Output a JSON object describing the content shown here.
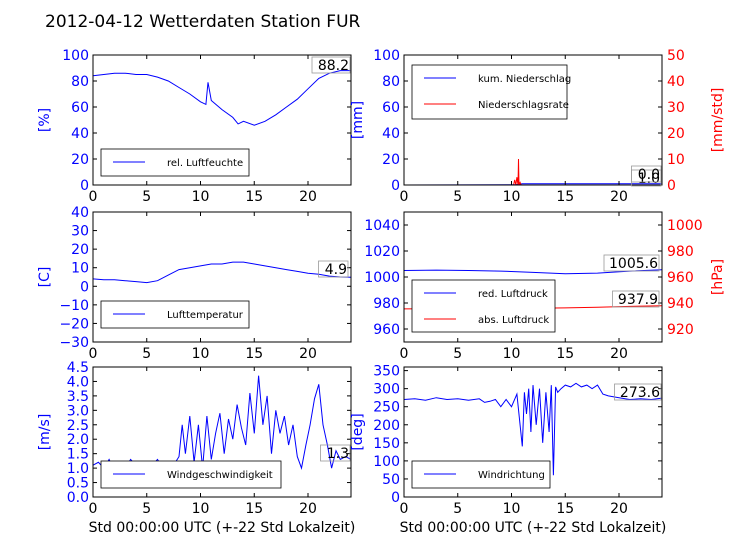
{
  "title": "2012-04-12 Wetterdaten Station FUR",
  "colors": {
    "left_axis": "#0000ff",
    "right_axis": "#ff0000",
    "line_primary": "#0000ff",
    "line_secondary": "#ff0000"
  },
  "chart_data": [
    {
      "id": "humidity",
      "type": "line",
      "ylabel": "[%]",
      "ylim": [
        0,
        100
      ],
      "yticks": [
        "0",
        "20",
        "40",
        "60",
        "80",
        "100"
      ],
      "xlim": [
        0,
        24
      ],
      "xticks": [
        "0",
        "5",
        "10",
        "15",
        "20"
      ],
      "xlabel": "",
      "annotation": "88.2",
      "legend_position": "lower-left",
      "series": [
        {
          "name": "rel. Luftfeuchte",
          "x": [
            0,
            1,
            2,
            3,
            4,
            5,
            6,
            7,
            8,
            9,
            10,
            10.5,
            10.7,
            11,
            12,
            13,
            13.5,
            14,
            15,
            16,
            17,
            18,
            19,
            20,
            21,
            22,
            23,
            24
          ],
          "values": [
            84,
            85,
            86,
            86,
            85,
            85,
            83,
            80,
            75,
            70,
            64,
            62,
            79,
            65,
            58,
            52,
            47,
            49,
            46,
            49,
            54,
            60,
            66,
            74,
            82,
            86,
            88,
            88
          ]
        }
      ]
    },
    {
      "id": "precipitation",
      "type": "line",
      "ylabel": "[mm]",
      "ylim": [
        0,
        100
      ],
      "yticks": [
        "0",
        "20",
        "40",
        "60",
        "80",
        "100"
      ],
      "y2label": "[mm/std]",
      "y2lim": [
        0,
        50
      ],
      "y2ticks": [
        "0",
        "10",
        "20",
        "30",
        "40",
        "50"
      ],
      "xlim": [
        0,
        24
      ],
      "xticks": [
        "0",
        "5",
        "10",
        "15",
        "20"
      ],
      "xlabel": "",
      "annotation": "1.0",
      "annotation2": "0.0",
      "legend_position": "upper-left",
      "series": [
        {
          "name": "kum. Niederschlag",
          "axis": "left",
          "x": [
            0,
            10.4,
            10.8,
            11,
            24
          ],
          "values": [
            0,
            0.2,
            0.8,
            1.0,
            1.0
          ]
        },
        {
          "name": "Niederschlagsrate",
          "axis": "right",
          "x": [
            0,
            10.2,
            10.3,
            10.4,
            10.5,
            10.6,
            10.65,
            10.7,
            10.8,
            10.9,
            11,
            24
          ],
          "values": [
            0,
            0,
            2,
            0,
            3,
            0,
            10,
            0,
            1,
            0,
            0,
            0
          ]
        }
      ]
    },
    {
      "id": "temperature",
      "type": "line",
      "ylabel": "[C]",
      "ylim": [
        -30,
        40
      ],
      "yticks": [
        "−30",
        "−20",
        "−10",
        "0",
        "10",
        "20",
        "30",
        "40"
      ],
      "xlim": [
        0,
        24
      ],
      "xticks": [
        "0",
        "5",
        "10",
        "15",
        "20"
      ],
      "xlabel": "",
      "annotation": "4.9",
      "legend_position": "lower-left",
      "series": [
        {
          "name": "Lufttemperatur",
          "x": [
            0,
            1,
            2,
            3,
            4,
            5,
            6,
            7,
            8,
            9,
            10,
            11,
            12,
            13,
            14,
            15,
            16,
            17,
            18,
            19,
            20,
            21,
            22,
            23,
            24
          ],
          "values": [
            4,
            3.5,
            3.5,
            3,
            2.5,
            2,
            3,
            6,
            9,
            10,
            11,
            12,
            12,
            13,
            13,
            12,
            11,
            10,
            9,
            8,
            7,
            6.5,
            5.5,
            5,
            4.9
          ]
        }
      ]
    },
    {
      "id": "pressure",
      "type": "line",
      "ylabel": "",
      "ylim": [
        950,
        1050
      ],
      "yticks": [
        "960",
        "980",
        "1000",
        "1020",
        "1040"
      ],
      "y2label": "[hPa]",
      "y2lim": [
        910,
        1010
      ],
      "y2ticks": [
        "920",
        "940",
        "960",
        "980",
        "1000"
      ],
      "xlim": [
        0,
        24
      ],
      "xticks": [
        "0",
        "5",
        "10",
        "15",
        "20"
      ],
      "xlabel": "",
      "annotation": "1005.6",
      "annotation2": "937.9",
      "legend_position": "lower-left",
      "series": [
        {
          "name": "red. Luftdruck",
          "axis": "left",
          "x": [
            0,
            3,
            6,
            9,
            12,
            15,
            18,
            21,
            24
          ],
          "values": [
            1005,
            1005.3,
            1005,
            1004.5,
            1003.5,
            1002.5,
            1003,
            1004.5,
            1005.6
          ]
        },
        {
          "name": "abs. Luftdruck",
          "axis": "right",
          "x": [
            0,
            3,
            6,
            9,
            12,
            15,
            18,
            21,
            24
          ],
          "values": [
            935.5,
            935.6,
            935.7,
            935.8,
            936,
            936.2,
            936.8,
            937.4,
            937.9
          ]
        }
      ]
    },
    {
      "id": "wind_speed",
      "type": "line",
      "ylabel": "[m/s]",
      "ylim": [
        0,
        4.5
      ],
      "yticks": [
        "0.0",
        "0.5",
        "1.0",
        "1.5",
        "2.0",
        "2.5",
        "3.0",
        "3.5",
        "4.0",
        "4.5"
      ],
      "xlim": [
        0,
        24
      ],
      "xticks": [
        "0",
        "5",
        "10",
        "15",
        "20"
      ],
      "xlabel": "Std 00:00:00 UTC (+-22 Std Lokalzeit)",
      "annotation": "1.3",
      "legend_position": "lower-left",
      "series": [
        {
          "name": "Windgeschwindigkeit",
          "x": [
            0,
            0.5,
            1,
            1.5,
            2,
            2.5,
            3,
            3.5,
            4,
            4.5,
            5,
            5.5,
            6,
            6.5,
            7,
            7.5,
            8,
            8.3,
            8.6,
            9,
            9.4,
            9.8,
            10.2,
            10.6,
            11,
            11.4,
            11.8,
            12.2,
            12.6,
            13,
            13.4,
            13.8,
            14.2,
            14.6,
            15,
            15.4,
            15.8,
            16.2,
            16.6,
            17,
            17.4,
            17.8,
            18.2,
            18.6,
            19,
            19.4,
            19.8,
            20.2,
            20.6,
            21,
            21.4,
            21.8,
            22.2,
            22.6,
            23,
            23.5,
            24
          ],
          "values": [
            1.1,
            1.2,
            1.0,
            1.3,
            0.9,
            1.2,
            1.0,
            1.3,
            1.1,
            1.2,
            0.9,
            1.1,
            1.3,
            1.0,
            1.2,
            1.1,
            1.4,
            2.5,
            1.5,
            2.8,
            1.2,
            2.5,
            1.0,
            2.8,
            1.3,
            2.2,
            2.9,
            1.5,
            2.7,
            2.0,
            3.2,
            2.4,
            1.8,
            3.6,
            2.2,
            4.2,
            2.5,
            3.5,
            1.5,
            3.0,
            2.2,
            2.8,
            1.8,
            2.5,
            1.4,
            1.0,
            1.8,
            2.5,
            3.4,
            3.9,
            2.5,
            1.8,
            1.0,
            1.6,
            1.3,
            1.4,
            1.3
          ]
        }
      ]
    },
    {
      "id": "wind_direction",
      "type": "line",
      "ylabel": "[deg]",
      "ylim": [
        0,
        360
      ],
      "yticks": [
        "0",
        "50",
        "100",
        "150",
        "200",
        "250",
        "300",
        "350"
      ],
      "xlim": [
        0,
        24
      ],
      "xticks": [
        "0",
        "5",
        "10",
        "15",
        "20"
      ],
      "xlabel": "Std 00:00:00 UTC (+-22 Std Lokalzeit)",
      "annotation": "273.6",
      "legend_position": "lower-left",
      "series": [
        {
          "name": "Windrichtung",
          "x": [
            0,
            1,
            2,
            3,
            4,
            5,
            6,
            7,
            7.5,
            8,
            8.5,
            9,
            9.5,
            10,
            10.5,
            11,
            11.2,
            11.4,
            11.6,
            11.8,
            12,
            12.3,
            12.6,
            12.9,
            13.2,
            13.5,
            13.7,
            13.9,
            14.1,
            14.3,
            14.6,
            15,
            15.5,
            16,
            16.5,
            17,
            17.5,
            18,
            18.5,
            19,
            20,
            21,
            22,
            23,
            24
          ],
          "values": [
            270,
            272,
            268,
            275,
            270,
            272,
            268,
            272,
            262,
            265,
            270,
            250,
            270,
            250,
            285,
            140,
            290,
            230,
            300,
            180,
            310,
            200,
            300,
            150,
            290,
            180,
            310,
            60,
            305,
            290,
            300,
            310,
            305,
            315,
            305,
            310,
            300,
            310,
            285,
            280,
            275,
            270,
            272,
            270,
            274
          ]
        }
      ]
    }
  ]
}
